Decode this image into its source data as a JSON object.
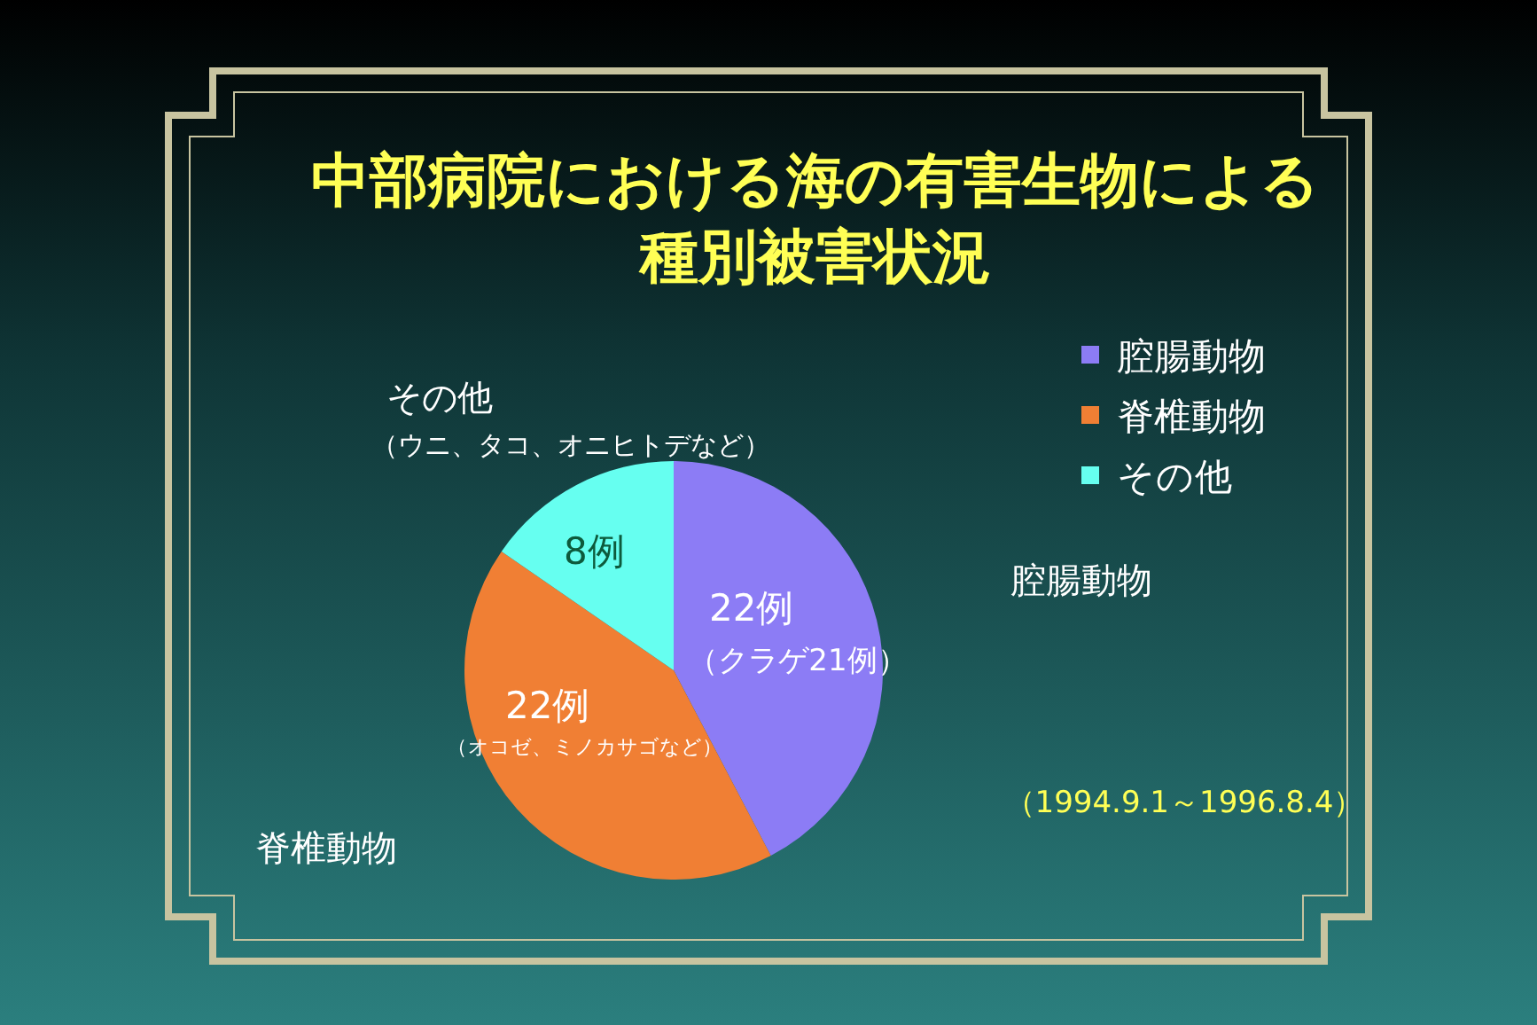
{
  "chart_data": {
    "type": "pie",
    "title": "中部病院における海の有害生物による種別被害状況",
    "categories": [
      "腔腸動物",
      "脊椎動物",
      "その他"
    ],
    "values": [
      22,
      22,
      8
    ],
    "colors": [
      "#8c7cf5",
      "#f07f34",
      "#66fff0"
    ],
    "value_labels": [
      "22例",
      "22例",
      "8例"
    ],
    "legend": "top right",
    "annotations": [
      "（クラゲ21例）",
      "（オコゼ、ミノカサゴなど）",
      "（ウニ、タコ、オニヒトデなど）",
      "（1994.9.1～1996.8.4）"
    ]
  }
}
